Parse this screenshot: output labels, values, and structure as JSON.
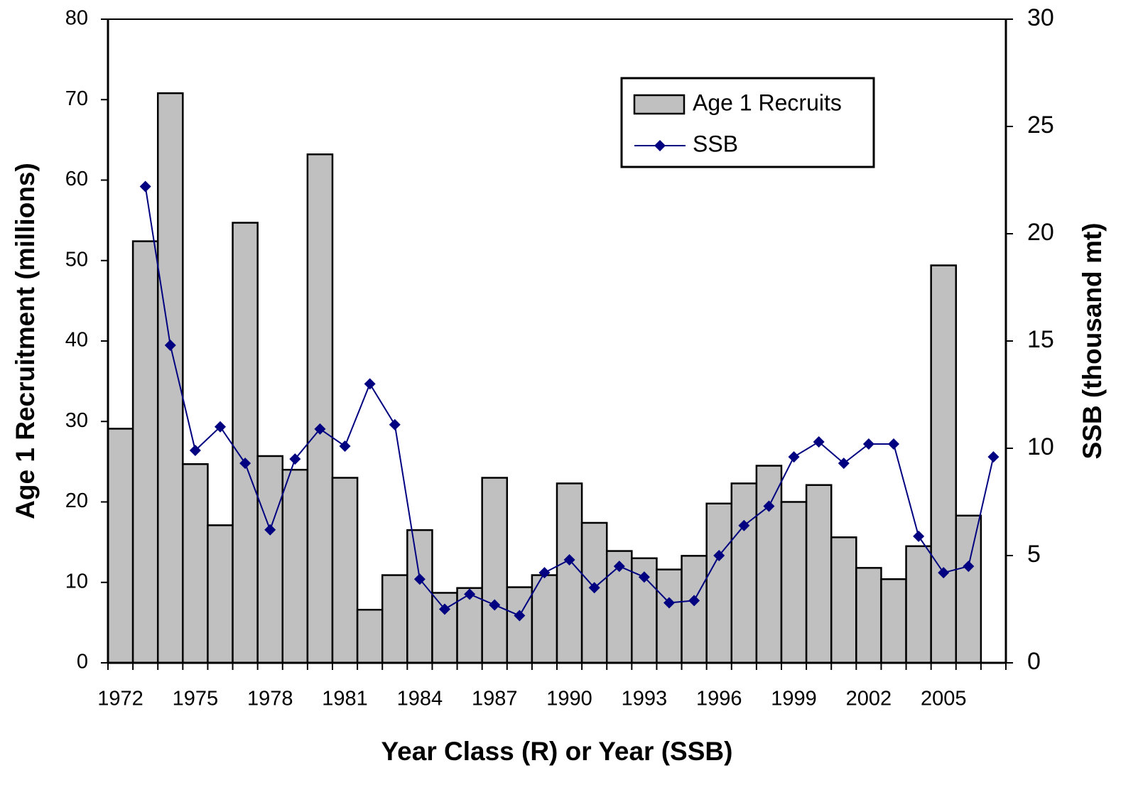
{
  "chart_data": {
    "type": "bar_line",
    "xlabel": "Year Class (R) or Year (SSB)",
    "ylabel": "Age 1 Recruitment (millions)",
    "y2label": "SSB (thousand mt)",
    "categories": [
      "1972",
      null,
      null,
      "1975",
      null,
      null,
      "1978",
      null,
      null,
      "1981",
      null,
      null,
      "1984",
      null,
      null,
      "1987",
      null,
      null,
      "1990",
      null,
      null,
      "1993",
      null,
      null,
      "1996",
      null,
      null,
      "1999",
      null,
      null,
      "2002",
      null,
      null,
      "2005",
      null,
      null
    ],
    "series": [
      {
        "name": "Age 1 Recruits",
        "type": "bar",
        "color": "#c0c0c0",
        "values": [
          29.1,
          52.4,
          70.8,
          24.7,
          17.1,
          54.7,
          25.7,
          24.0,
          63.2,
          23.0,
          6.6,
          10.9,
          16.5,
          8.7,
          9.3,
          23.0,
          9.4,
          10.9,
          22.3,
          17.4,
          13.9,
          13.0,
          11.6,
          13.3,
          19.8,
          22.3,
          24.5,
          20.0,
          22.1,
          15.6,
          11.8,
          10.4,
          14.5,
          49.4,
          18.3,
          null
        ]
      },
      {
        "name": "SSB",
        "type": "line",
        "axis": "y2",
        "color": "#000080",
        "values": [
          null,
          22.2,
          14.8,
          9.9,
          11.0,
          9.3,
          6.2,
          9.5,
          10.9,
          10.1,
          13.0,
          11.1,
          3.9,
          2.5,
          3.2,
          2.7,
          2.2,
          4.2,
          4.8,
          3.5,
          4.5,
          4.0,
          2.8,
          2.9,
          5.0,
          6.4,
          7.3,
          9.6,
          10.3,
          9.3,
          10.2,
          10.2,
          5.9,
          4.2,
          4.5,
          9.6
        ]
      }
    ],
    "ylim": [
      0,
      80
    ],
    "yticks": [
      0,
      10,
      20,
      30,
      40,
      50,
      60,
      70,
      80
    ],
    "y2lim": [
      0,
      30
    ],
    "y2ticks": [
      0,
      5,
      10,
      15,
      20,
      25,
      30
    ],
    "legend": "upper right"
  }
}
